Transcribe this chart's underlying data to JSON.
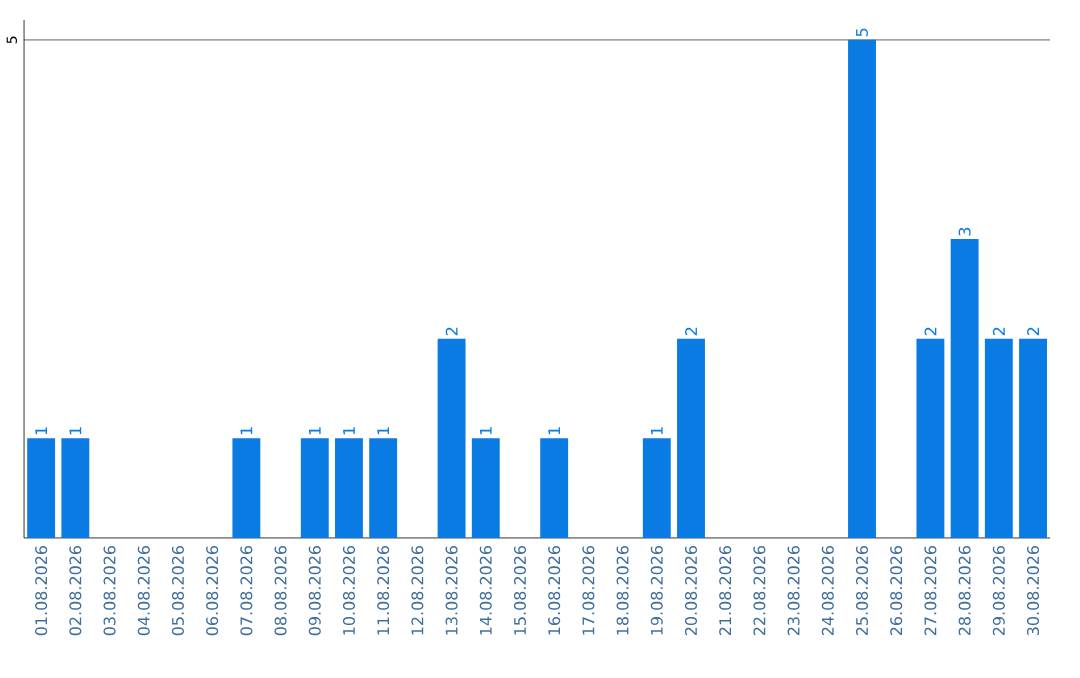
{
  "chart_data": {
    "type": "bar",
    "categories": [
      "01.08.2026",
      "02.08.2026",
      "03.08.2026",
      "04.08.2026",
      "05.08.2026",
      "06.08.2026",
      "07.08.2026",
      "08.08.2026",
      "09.08.2026",
      "10.08.2026",
      "11.08.2026",
      "12.08.2026",
      "13.08.2026",
      "14.08.2026",
      "15.08.2026",
      "16.08.2026",
      "17.08.2026",
      "18.08.2026",
      "19.08.2026",
      "20.08.2026",
      "21.08.2026",
      "22.08.2026",
      "23.08.2026",
      "24.08.2026",
      "25.08.2026",
      "26.08.2026",
      "27.08.2026",
      "28.08.2026",
      "29.08.2026",
      "30.08.2026"
    ],
    "values": [
      1,
      1,
      0,
      0,
      0,
      0,
      1,
      0,
      1,
      1,
      1,
      0,
      2,
      1,
      0,
      1,
      0,
      0,
      1,
      2,
      0,
      0,
      0,
      0,
      5,
      0,
      2,
      3,
      2,
      2
    ],
    "value_labels": [
      "1",
      "1",
      null,
      null,
      null,
      null,
      "1",
      null,
      "1",
      "1",
      "1",
      null,
      "2",
      "1",
      null,
      "1",
      null,
      null,
      "1",
      "2",
      null,
      null,
      null,
      null,
      "5",
      null,
      "2",
      "3",
      "2",
      "2"
    ],
    "color": "#0a7be3",
    "ylim": [
      0,
      5.2
    ],
    "yticks": [
      5
    ],
    "grid": "y"
  }
}
